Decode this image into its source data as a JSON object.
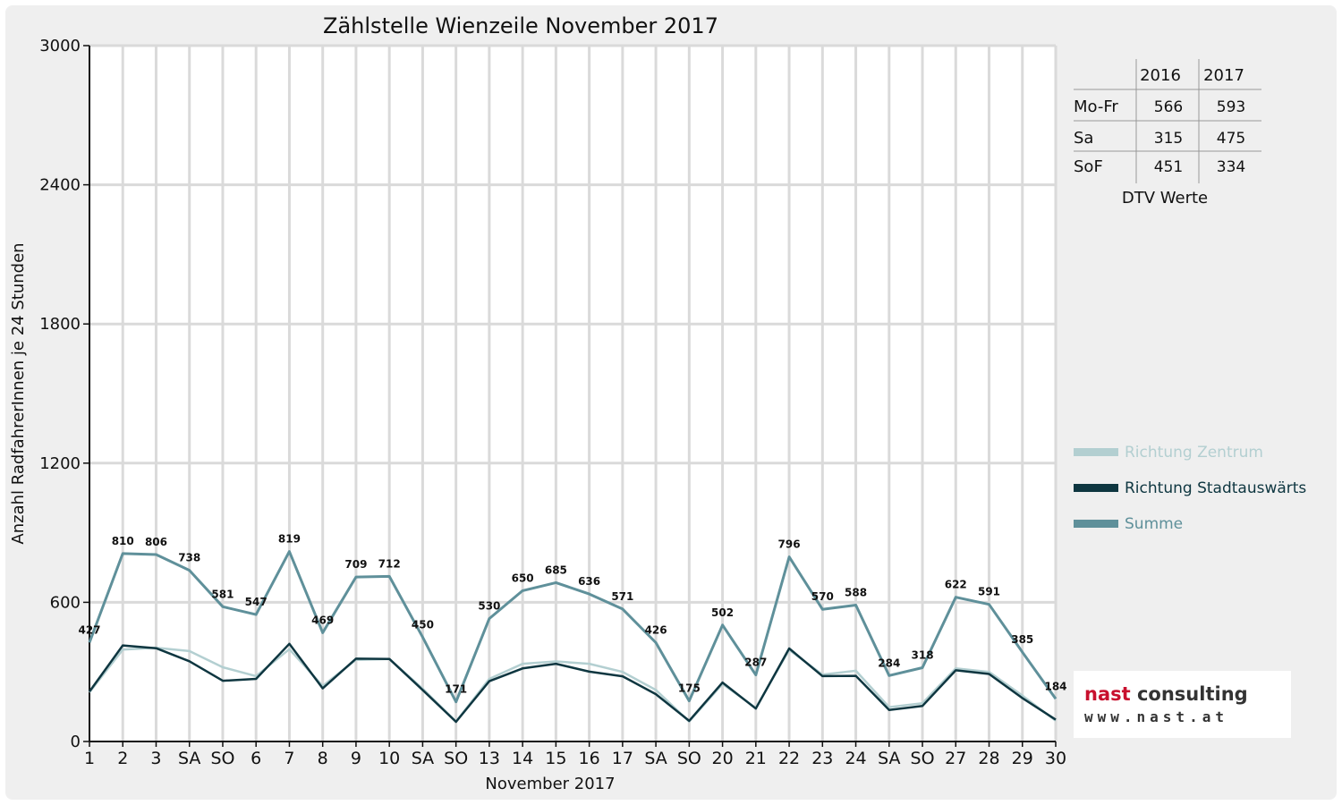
{
  "chart_data": {
    "type": "line",
    "title": "Zählstelle Wienzeile November 2017",
    "ylabel": "Anzahl RadfahrerInnen je 24 Stunden",
    "xlabel": "November 2017",
    "ylim": [
      0,
      3000
    ],
    "yticks": [
      0,
      600,
      1200,
      1800,
      2400,
      3000
    ],
    "grid": true,
    "legend_position": "right",
    "categories": [
      "1",
      "2",
      "3",
      "SA",
      "SO",
      "6",
      "7",
      "8",
      "9",
      "10",
      "SA",
      "SO",
      "13",
      "14",
      "15",
      "16",
      "17",
      "SA",
      "SO",
      "20",
      "21",
      "22",
      "23",
      "24",
      "SA",
      "SO",
      "27",
      "28",
      "29",
      "30"
    ],
    "holiday_or_sunday_flags": [
      true,
      false,
      false,
      false,
      true,
      false,
      false,
      false,
      false,
      false,
      false,
      true,
      false,
      false,
      false,
      false,
      false,
      false,
      true,
      false,
      false,
      false,
      false,
      false,
      false,
      true,
      false,
      false,
      false,
      false
    ],
    "series": [
      {
        "name": "Richtung Zentrum",
        "color": "#b3cfd1",
        "values": [
          212,
          396,
          404,
          390,
          320,
          282,
          398,
          240,
          352,
          356,
          228,
          86,
          270,
          335,
          345,
          335,
          300,
          222,
          86,
          248,
          145,
          395,
          288,
          305,
          148,
          165,
          315,
          300,
          198,
          90
        ]
      },
      {
        "name": "Richtung Stadtauswärts",
        "color": "#0e3640",
        "values": [
          215,
          414,
          402,
          346,
          262,
          270,
          421,
          229,
          357,
          356,
          222,
          85,
          260,
          315,
          335,
          301,
          281,
          204,
          89,
          254,
          142,
          401,
          282,
          283,
          136,
          153,
          307,
          291,
          187,
          94
        ]
      },
      {
        "name": "Summe",
        "color": "#5f909a",
        "values": [
          427,
          810,
          806,
          738,
          581,
          547,
          819,
          469,
          709,
          712,
          450,
          171,
          530,
          650,
          685,
          636,
          571,
          426,
          175,
          502,
          287,
          796,
          570,
          588,
          284,
          318,
          622,
          591,
          385,
          184
        ]
      }
    ],
    "data_labels": [
      427,
      810,
      806,
      738,
      581,
      547,
      819,
      469,
      709,
      712,
      450,
      171,
      530,
      650,
      685,
      636,
      571,
      426,
      175,
      502,
      287,
      796,
      570,
      588,
      284,
      318,
      622,
      591,
      385,
      184
    ]
  },
  "dtv_table": {
    "columns": [
      "2016",
      "2017"
    ],
    "rows": [
      {
        "label": "Mo-Fr",
        "v2016": "566",
        "v2017": "593"
      },
      {
        "label": "Sa",
        "v2016": "315",
        "v2017": "475"
      },
      {
        "label": "SoF",
        "v2016": "451",
        "v2017": "334"
      }
    ],
    "caption": "DTV Werte"
  },
  "logo": {
    "line1_a": "nast",
    "line1_b": " consulting",
    "line2": "www.nast.at"
  }
}
